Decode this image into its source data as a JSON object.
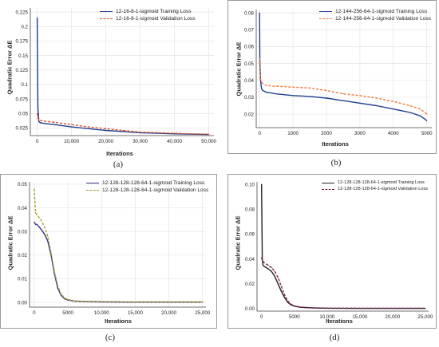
{
  "chart_data": [
    {
      "type": "line",
      "caption": "(a)",
      "xlabel": "Iterations",
      "ylabel": "Quadratic Error ΔE",
      "xlim": [
        -2000,
        51500
      ],
      "ylim": [
        0.012,
        0.232
      ],
      "xticks": [
        0,
        10000,
        20000,
        30000,
        40000,
        50000
      ],
      "xtick_labels": [
        "0",
        "10,000",
        "20,000",
        "30,000",
        "40,000",
        "50,000"
      ],
      "yticks": [
        0.025,
        0.05,
        0.075,
        0.1,
        0.125,
        0.15,
        0.175,
        0.2,
        0.225
      ],
      "ytick_labels": [
        "0.025",
        "0.05",
        "0.075",
        "0.1",
        "0.125",
        "0.15",
        "0.175",
        "0.2",
        "0.225"
      ],
      "grid": true,
      "legend_position": "top-center",
      "series": [
        {
          "name": "12-16-8-1-sigmoid Training Loss",
          "color": "#1f3f8f",
          "dash": "solid",
          "x": [
            0,
            200,
            500,
            1000,
            2000,
            5000,
            10000,
            15000,
            20000,
            25000,
            30000,
            35000,
            40000,
            45000,
            50000
          ],
          "y": [
            0.215,
            0.06,
            0.036,
            0.034,
            0.033,
            0.031,
            0.027,
            0.024,
            0.021,
            0.019,
            0.017,
            0.016,
            0.015,
            0.0145,
            0.014
          ]
        },
        {
          "name": "12-16-8-1-sigmoid Validation Loss",
          "color": "#e5502a",
          "dash": "dashed",
          "x": [
            0,
            200,
            500,
            1000,
            2000,
            5000,
            10000,
            15000,
            20000,
            25000,
            30000,
            35000,
            40000,
            45000,
            50000
          ],
          "y": [
            0.05,
            0.042,
            0.039,
            0.038,
            0.037,
            0.035,
            0.031,
            0.027,
            0.024,
            0.021,
            0.018,
            0.017,
            0.016,
            0.015,
            0.0145
          ]
        }
      ]
    },
    {
      "type": "line",
      "caption": "(b)",
      "xlabel": "Iterations",
      "ylabel": "Quadratic Error ΔE",
      "xlim": [
        -100,
        5150
      ],
      "ylim": [
        0.012,
        0.082
      ],
      "xticks": [
        0,
        1000,
        2000,
        3000,
        4000,
        5000
      ],
      "xtick_labels": [
        "0",
        "1000",
        "2000",
        "3000",
        "4000",
        "5000"
      ],
      "yticks": [
        0.02,
        0.03,
        0.04,
        0.05,
        0.06,
        0.07,
        0.08
      ],
      "ytick_labels": [
        "0.02",
        "0.03",
        "0.04",
        "0.05",
        "0.06",
        "0.07",
        "0.08"
      ],
      "grid": true,
      "legend_position": "top-right",
      "series": [
        {
          "name": "12-144-256-64-1-sigmoid Training Loss",
          "color": "#1f3f8f",
          "dash": "solid",
          "x": [
            0,
            10,
            30,
            60,
            100,
            200,
            500,
            1000,
            1500,
            2000,
            2500,
            3000,
            3500,
            4000,
            4500,
            4800,
            4950,
            5000
          ],
          "y": [
            0.08,
            0.05,
            0.04,
            0.035,
            0.034,
            0.033,
            0.032,
            0.031,
            0.0305,
            0.0295,
            0.028,
            0.0265,
            0.025,
            0.023,
            0.021,
            0.019,
            0.017,
            0.016
          ]
        },
        {
          "name": "12-144-256-64-1-sigmoid Validation Loss",
          "color": "#f07a3a",
          "dash": "dashed",
          "x": [
            0,
            10,
            30,
            60,
            100,
            200,
            500,
            1000,
            1500,
            2000,
            2500,
            3000,
            3500,
            4000,
            4500,
            4800,
            4950,
            5000
          ],
          "y": [
            0.053,
            0.045,
            0.041,
            0.039,
            0.038,
            0.037,
            0.0365,
            0.036,
            0.0355,
            0.034,
            0.032,
            0.031,
            0.0295,
            0.0275,
            0.025,
            0.023,
            0.021,
            0.02
          ]
        }
      ]
    },
    {
      "type": "line",
      "caption": "(c)",
      "xlabel": "Iterations",
      "ylabel": "Quadratic Error ΔE",
      "xlim": [
        -700,
        25500
      ],
      "ylim": [
        -0.002,
        0.051
      ],
      "xticks": [
        0,
        5000,
        10000,
        15000,
        20000,
        25000
      ],
      "xtick_labels": [
        "0",
        "5000",
        "10,000",
        "15,000",
        "20,000",
        "25,000"
      ],
      "yticks": [
        0.0,
        0.01,
        0.02,
        0.03,
        0.04,
        0.05
      ],
      "ytick_labels": [
        "0.00",
        "0.01",
        "0.02",
        "0.03",
        "0.04",
        "0.05"
      ],
      "grid": true,
      "legend_position": "top-right",
      "series": [
        {
          "name": "12-128-128-128-64-1-sigmoid Training Loss",
          "color": "#3a2f8f",
          "dash": "solid",
          "x": [
            0,
            200,
            400,
            1000,
            1500,
            2000,
            2500,
            3000,
            3500,
            4000,
            4500,
            5000,
            6000,
            8000,
            10000,
            15000,
            20000,
            25000
          ],
          "y": [
            0.034,
            0.033,
            0.033,
            0.031,
            0.029,
            0.026,
            0.02,
            0.012,
            0.006,
            0.003,
            0.0015,
            0.001,
            0.0005,
            0.0003,
            0.0002,
            0.0001,
            0.0001,
            0.0001
          ]
        },
        {
          "name": "12-128-128-128-64-1-sigmoid Validation Loss",
          "color": "#a8a020",
          "dash": "dashed",
          "x": [
            0,
            200,
            400,
            1000,
            1500,
            2000,
            2500,
            3000,
            3500,
            4000,
            4500,
            5000,
            6000,
            8000,
            10000,
            15000,
            20000,
            25000
          ],
          "y": [
            0.048,
            0.038,
            0.037,
            0.035,
            0.032,
            0.028,
            0.021,
            0.013,
            0.007,
            0.0035,
            0.0018,
            0.0012,
            0.0006,
            0.0004,
            0.0003,
            0.0002,
            0.0002,
            0.0002
          ]
        }
      ]
    },
    {
      "type": "line",
      "caption": "(d)",
      "xlabel": "Iterations",
      "ylabel": "Quadratic Error ΔE",
      "xlim": [
        -700,
        25500
      ],
      "ylim": [
        -0.002,
        0.102
      ],
      "xticks": [
        0,
        5000,
        10000,
        15000,
        20000,
        25000
      ],
      "xtick_labels": [
        "0",
        "5000",
        "10,000",
        "15,000",
        "20,000",
        "25,000"
      ],
      "yticks": [
        0.0,
        0.02,
        0.04,
        0.06,
        0.08,
        0.1
      ],
      "ytick_labels": [
        "0.00",
        "0.02",
        "0.04",
        "0.06",
        "0.08",
        "0.10"
      ],
      "grid": false,
      "legend_position": "top-right",
      "series": [
        {
          "name": "12-128-128-128-64-1-sigmoid Training Loss",
          "color": "#222222",
          "dash": "solid",
          "x": [
            0,
            100,
            200,
            400,
            1000,
            1500,
            2000,
            2500,
            3000,
            3500,
            4000,
            4500,
            5000,
            6000,
            8000,
            10000,
            15000,
            20000,
            25000
          ],
          "y": [
            0.1,
            0.04,
            0.035,
            0.034,
            0.032,
            0.03,
            0.026,
            0.02,
            0.014,
            0.009,
            0.005,
            0.003,
            0.002,
            0.001,
            0.0005,
            0.0003,
            0.0002,
            0.0002,
            0.0002
          ]
        },
        {
          "name": "12-128-128-128-64-1-sigmoid Validation Loss",
          "color": "#7a1f4f",
          "dash": "dashed",
          "x": [
            0,
            100,
            200,
            400,
            1000,
            1500,
            2000,
            2500,
            3000,
            3500,
            4000,
            4500,
            5000,
            6000,
            8000,
            10000,
            15000,
            20000,
            25000
          ],
          "y": [
            0.041,
            0.039,
            0.038,
            0.037,
            0.035,
            0.033,
            0.03,
            0.025,
            0.018,
            0.011,
            0.006,
            0.0035,
            0.0022,
            0.0012,
            0.0006,
            0.0004,
            0.0003,
            0.0003,
            0.0003
          ]
        }
      ]
    }
  ]
}
